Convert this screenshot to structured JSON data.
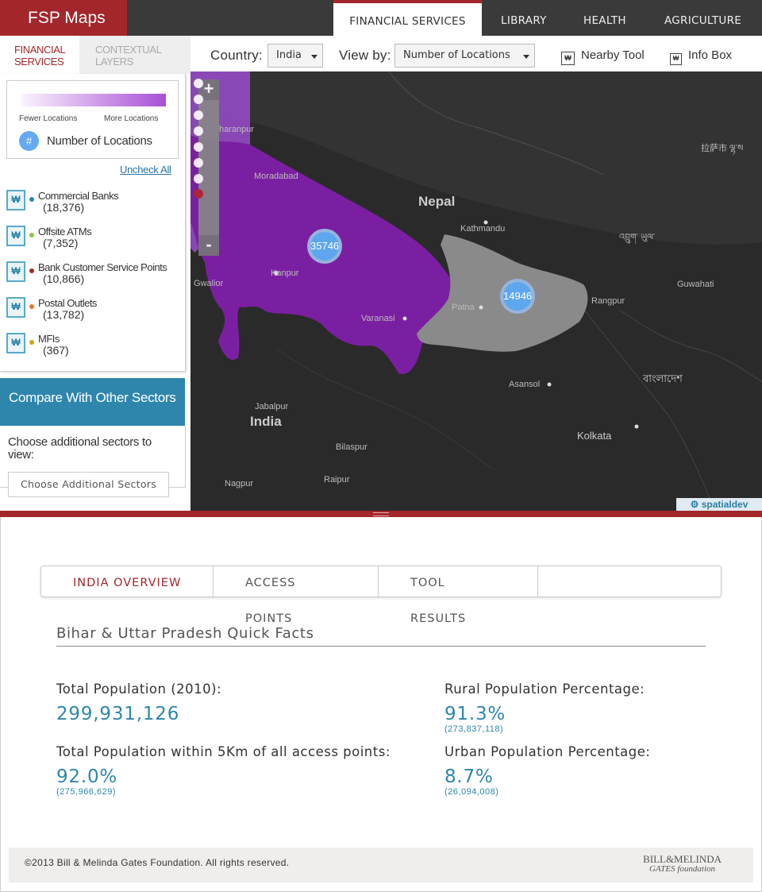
{
  "app": {
    "title": "FSP Maps"
  },
  "nav": {
    "items": [
      "FINANCIAL SERVICES",
      "LIBRARY",
      "HEALTH",
      "AGRICULTURE"
    ],
    "active": "FINANCIAL SERVICES"
  },
  "left_tabs": {
    "tab1": "FINANCIAL SERVICES",
    "tab2": "CONTEXTUAL LAYERS"
  },
  "legend": {
    "fewer": "Fewer Locations",
    "more": "More Locations",
    "hash": "#",
    "label": "Number of Locations"
  },
  "uncheck_all": "Uncheck All",
  "layers": [
    {
      "name": "Commercial Banks",
      "count": "(18,376)",
      "color": "#2e86ad"
    },
    {
      "name": "Offsite ATMs",
      "count": "(7,352)",
      "color": "#8cc63f"
    },
    {
      "name": "Bank Customer Service Points",
      "count": "(10,866)",
      "color": "#a3262b"
    },
    {
      "name": "Postal Outlets",
      "count": "(13,782)",
      "color": "#e07b24"
    },
    {
      "name": "MFIs",
      "count": "(367)",
      "color": "#d4a019"
    }
  ],
  "compare": {
    "title": "Compare With Other Sectors",
    "prompt": "Choose additional sectors to view:",
    "button": "Choose Additional Sectors"
  },
  "toolbar": {
    "country_label": "Country:",
    "country_value": "India",
    "viewby_label": "View by:",
    "viewby_value": "Number of Locations",
    "nearby_tool": "Nearby Tool",
    "info_box": "Info Box"
  },
  "map": {
    "labels": {
      "saharanpur": "haranpur",
      "moradabad": "Moradabad",
      "nepal": "Nepal",
      "kathmandu": "Kathmandu",
      "lhasa": "拉萨市 ལྷ་ས",
      "bhutan": "འབྲུག་ ཡུལ་",
      "kanpur": "Kanpur",
      "gwalior": "Gwalior",
      "patna": "Patna",
      "varanasi": "Varanasi",
      "guwahati": "Guwahati",
      "rangpur": "Rangpur",
      "bangladesh": "বাংলাদেশ",
      "asansol": "Asansol",
      "jabalpur": "Jabalpur",
      "india": "India",
      "kolkata": "Kolkata",
      "bilaspur": "Bilaspur",
      "raipur": "Raipur",
      "nagpur": "Nagpur"
    },
    "clusters": {
      "up": "35746",
      "bihar": "14946"
    },
    "zoom_in": "+",
    "zoom_out": "-",
    "attribution": "spatialdev",
    "region_colors": {
      "up": "#7b1fa2",
      "bihar": "#8a8a8a"
    }
  },
  "bottom_tabs": {
    "overview": "INDIA OVERVIEW",
    "access": "ACCESS",
    "access2": "POINTS",
    "tool": "TOOL",
    "tool2": "RESULTS"
  },
  "quick_facts": {
    "title": "Bihar & Uttar Pradesh Quick Facts",
    "total_pop_label": "Total Population (2010):",
    "total_pop_value": "299,931,126",
    "within5_label": "Total Population within 5Km of all access points:",
    "within5_value": "92.0%",
    "within5_sub": "(275,966,629)",
    "rural_label": "Rural Population Percentage:",
    "rural_value": "91.3%",
    "rural_sub": "(273,837,118)",
    "urban_label": "Urban Population Percentage:",
    "urban_value": "8.7%",
    "urban_sub": "(26,094,008)"
  },
  "footer": {
    "copyright": "©2013 Bill & Melinda Gates Foundation. All rights reserved.",
    "logo_line1": "BILL&MELINDA",
    "logo_line2": "GATES foundation"
  }
}
